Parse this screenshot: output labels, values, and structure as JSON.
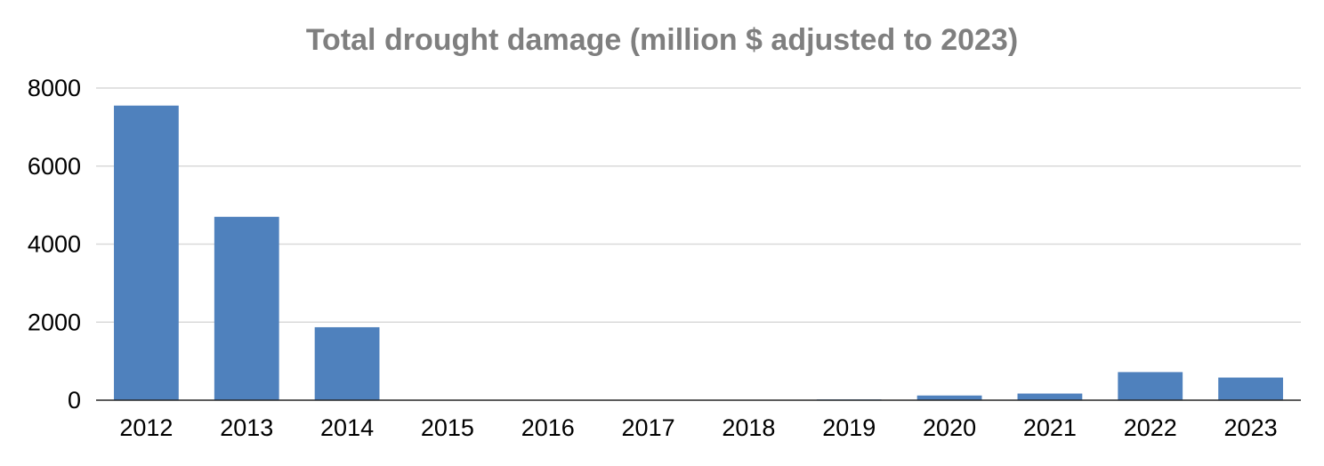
{
  "chart_data": {
    "type": "bar",
    "title": "Total drought damage (million $ adjusted to 2023)",
    "xlabel": "",
    "ylabel": "",
    "categories": [
      "2012",
      "2013",
      "2014",
      "2015",
      "2016",
      "2017",
      "2018",
      "2019",
      "2020",
      "2021",
      "2022",
      "2023"
    ],
    "series": [
      {
        "values": [
          7550,
          4700,
          1870,
          0,
          0,
          0,
          0,
          20,
          120,
          170,
          720,
          580
        ]
      }
    ],
    "ylim": [
      0,
      8000
    ],
    "yticks": [
      "0",
      "2000",
      "4000",
      "6000",
      "8000"
    ],
    "grid": true,
    "legend": "none",
    "colors": {
      "bar": "#4f81bd",
      "title": "#7f7f7f",
      "grid": "#d9d9d9",
      "axis": "#262626"
    }
  }
}
